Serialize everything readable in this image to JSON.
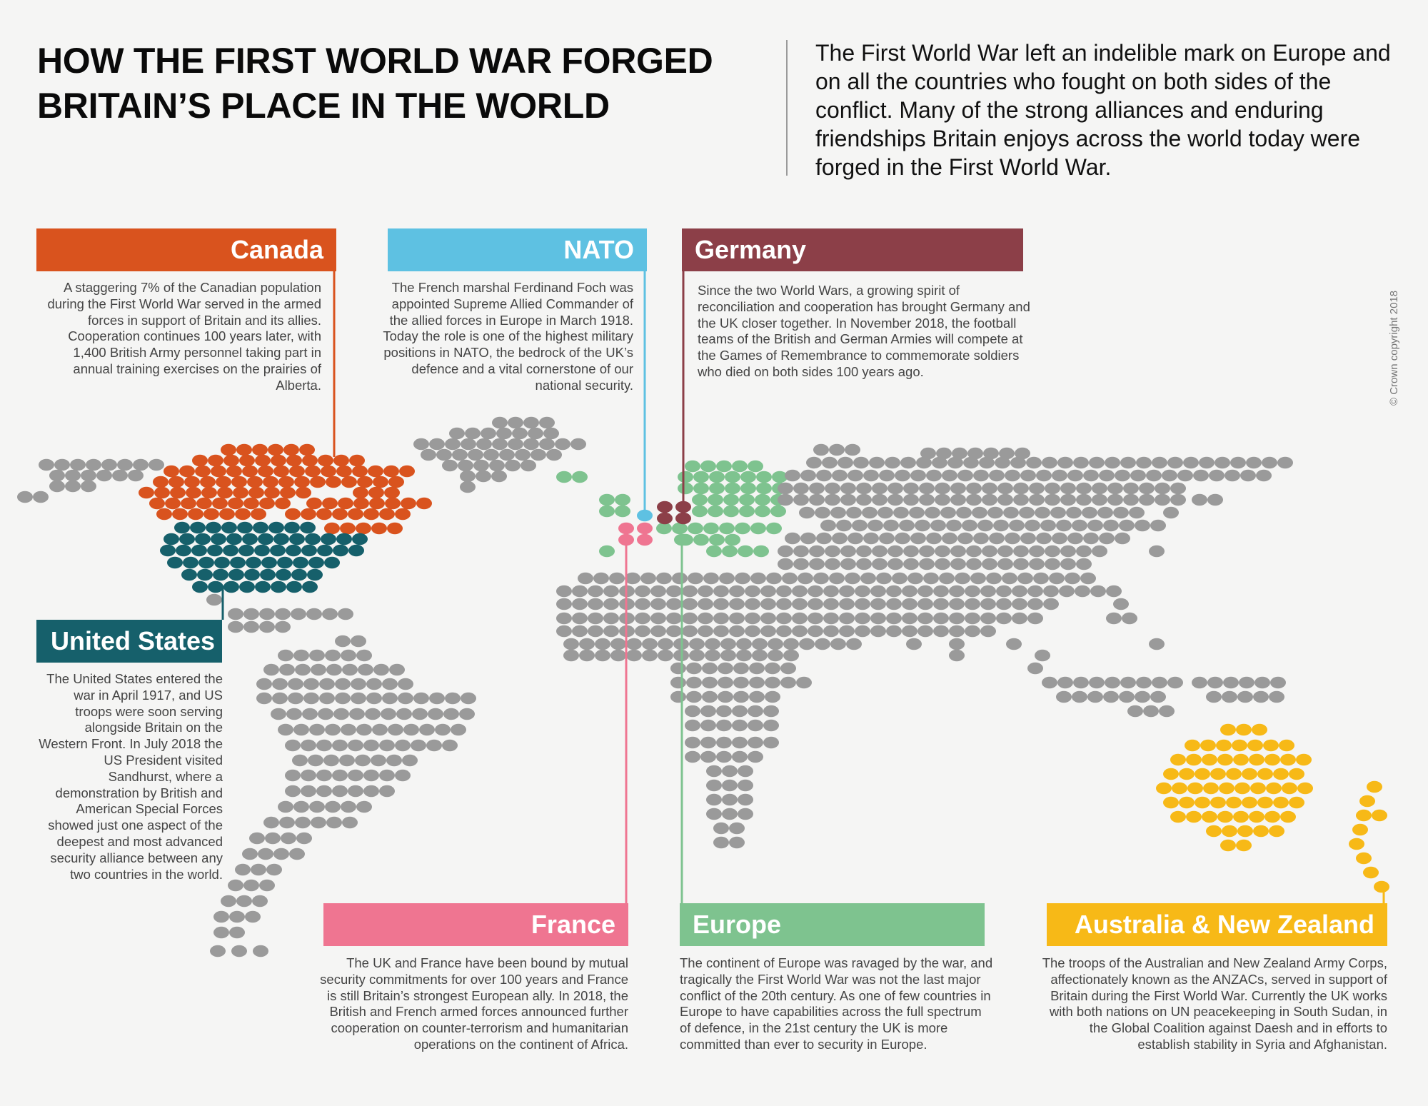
{
  "header": {
    "title_line1": "HOW THE FIRST WORLD WAR FORGED",
    "title_line2": "BRITAIN’S PLACE IN THE WORLD",
    "intro": "The First World War left an indelible mark on Europe and on all the countries who fought on both sides of the conflict. Many of the strong alliances and enduring friendships Britain enjoys across the world today were forged in the First World War."
  },
  "copyright": "© Crown copyright 2018",
  "colors": {
    "background": "#f5f5f4",
    "canada": "#d9531e",
    "nato": "#5ec1e2",
    "germany": "#8c3f48",
    "united_states": "#16606b",
    "france": "#ef7591",
    "europe": "#7ec38f",
    "australia_nz": "#f7b917",
    "world": "#9a9a9a"
  },
  "panels": {
    "canada": {
      "title": "Canada",
      "text": "A staggering 7% of the Canadian population during the First World War served in the armed forces in support of Britain and its allies. Cooperation continues 100 years later, with 1,400 British Army personnel taking part in annual training exercises on the prairies of Alberta."
    },
    "nato": {
      "title": "NATO",
      "text": "The French marshal Ferdinand Foch was appointed Supreme Allied Commander of the allied forces in Europe in March 1918. Today the role is one of the highest military positions in NATO, the bedrock of the UK’s defence and a vital cornerstone of our national security."
    },
    "germany": {
      "title": "Germany",
      "text": "Since the two World Wars, a growing spirit of reconciliation and cooperation has brought Germany and the UK closer together. In November 2018, the football teams of the British and German Armies will compete at the Games of Remembrance to commemorate soldiers who died on both sides 100 years ago."
    },
    "united_states": {
      "title": "United States",
      "text": "The United States entered the war in April 1917, and US troops were soon serving alongside Britain on the Western Front. In July 2018 the US President visited Sandhurst, where a demonstration by British and American Special Forces showed just one aspect of the deepest and most advanced security alliance between any two countries in the world."
    },
    "france": {
      "title": "France",
      "text": "The UK and France have been bound by mutual security commitments for over 100 years and France is still Britain’s strongest European ally. In 2018, the British and French armed forces announced further cooperation on counter-terrorism and humanitarian operations on the continent of Africa."
    },
    "europe": {
      "title": "Europe",
      "text": "The continent of Europe was ravaged by the war, and tragically the First World War was not the last major conflict of the 20th century. As one of few countries in Europe to have capabilities across the full spectrum of defence, in the 21st century the UK is more committed than ever to security in Europe."
    },
    "australia_nz": {
      "title": "Australia & New Zealand",
      "text": "The troops of the Australian and New Zealand Army Corps, affectionately known as the ANZACs, served in support of Britain during the First World War. Currently the UK works with both nations on UN peacekeeping in South Sudan, in the Global Coalition against Daesh and in efforts to establish stability in Syria and Afghanistan."
    }
  }
}
